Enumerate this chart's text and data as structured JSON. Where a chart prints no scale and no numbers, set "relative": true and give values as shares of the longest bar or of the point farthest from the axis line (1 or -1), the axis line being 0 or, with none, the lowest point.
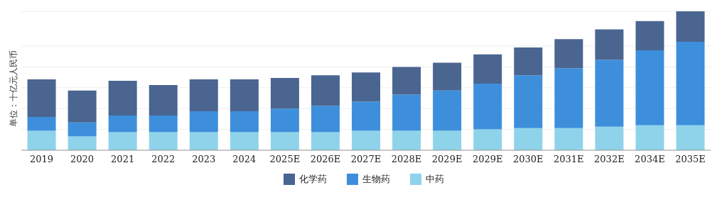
{
  "chart_data": {
    "type": "bar",
    "ylabel": "单位：十亿元人民币",
    "categories": [
      "2019",
      "2020",
      "2021",
      "2022",
      "2023",
      "2024",
      "2025E",
      "2026E",
      "2027E",
      "2028E",
      "2029E",
      "2029E",
      "2030E",
      "2031E",
      "2032E",
      "2034E",
      "2035E"
    ],
    "stacked": true,
    "relative": true,
    "grid": "y",
    "legend": "bottom",
    "series": [
      {
        "name": "中药",
        "color": "#8fd3ea",
        "values": [
          0.14,
          0.1,
          0.13,
          0.13,
          0.13,
          0.13,
          0.13,
          0.13,
          0.14,
          0.14,
          0.14,
          0.15,
          0.16,
          0.16,
          0.17,
          0.18,
          0.18
        ]
      },
      {
        "name": "生物药",
        "color": "#3d8fdc",
        "values": [
          0.1,
          0.1,
          0.12,
          0.12,
          0.15,
          0.15,
          0.17,
          0.19,
          0.21,
          0.26,
          0.29,
          0.33,
          0.38,
          0.43,
          0.48,
          0.54,
          0.6
        ]
      },
      {
        "name": "化学药",
        "color": "#4a6590",
        "values": [
          0.27,
          0.23,
          0.25,
          0.22,
          0.23,
          0.23,
          0.22,
          0.22,
          0.21,
          0.2,
          0.2,
          0.21,
          0.2,
          0.21,
          0.22,
          0.21,
          0.22
        ]
      }
    ]
  }
}
